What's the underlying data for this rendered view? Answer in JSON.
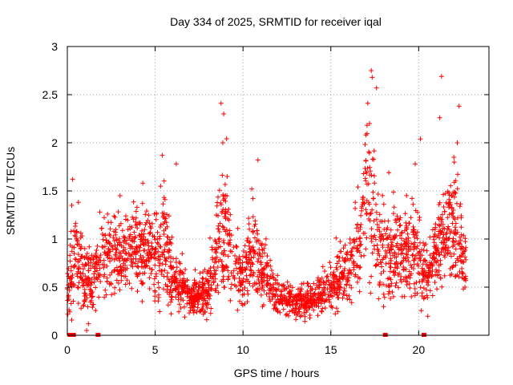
{
  "chart_data": {
    "type": "scatter",
    "title": "Day 334 of 2025, SRMTID for receiver iqal",
    "xlabel": "GPS time / hours",
    "ylabel": "SRMTID / TECUs",
    "xlim": [
      0,
      24
    ],
    "ylim": [
      0,
      3
    ],
    "xticks": [
      0,
      5,
      10,
      15,
      20
    ],
    "yticks": [
      0,
      0.5,
      1,
      1.5,
      2,
      2.5,
      3
    ],
    "xtick_labels": [
      "0",
      "5",
      "10",
      "15",
      "20"
    ],
    "ytick_labels": [
      "0",
      "0.5",
      "1",
      "1.5",
      "2",
      "2.5",
      "3"
    ],
    "grid": true,
    "marker": "+",
    "series": [
      {
        "name": "SRMTID",
        "color": "#ff0000",
        "seed": 334,
        "envelope": [
          {
            "x": 0.0,
            "mean": 0.5,
            "spread": 0.25
          },
          {
            "x": 0.5,
            "mean": 0.8,
            "spread": 0.5
          },
          {
            "x": 1.0,
            "mean": 0.6,
            "spread": 0.35
          },
          {
            "x": 1.5,
            "mean": 0.55,
            "spread": 0.3
          },
          {
            "x": 2.0,
            "mean": 0.85,
            "spread": 0.35
          },
          {
            "x": 3.0,
            "mean": 0.8,
            "spread": 0.4
          },
          {
            "x": 4.0,
            "mean": 0.9,
            "spread": 0.35
          },
          {
            "x": 5.0,
            "mean": 0.8,
            "spread": 0.4
          },
          {
            "x": 5.5,
            "mean": 1.0,
            "spread": 0.5
          },
          {
            "x": 6.0,
            "mean": 0.6,
            "spread": 0.3
          },
          {
            "x": 7.0,
            "mean": 0.4,
            "spread": 0.15
          },
          {
            "x": 8.0,
            "mean": 0.45,
            "spread": 0.2
          },
          {
            "x": 8.5,
            "mean": 0.9,
            "spread": 0.5
          },
          {
            "x": 9.0,
            "mean": 1.2,
            "spread": 0.7
          },
          {
            "x": 9.5,
            "mean": 0.7,
            "spread": 0.35
          },
          {
            "x": 10.0,
            "mean": 0.6,
            "spread": 0.3
          },
          {
            "x": 10.5,
            "mean": 0.85,
            "spread": 0.45
          },
          {
            "x": 11.0,
            "mean": 0.7,
            "spread": 0.3
          },
          {
            "x": 12.0,
            "mean": 0.4,
            "spread": 0.15
          },
          {
            "x": 13.0,
            "mean": 0.35,
            "spread": 0.15
          },
          {
            "x": 14.0,
            "mean": 0.38,
            "spread": 0.15
          },
          {
            "x": 15.0,
            "mean": 0.5,
            "spread": 0.2
          },
          {
            "x": 16.0,
            "mean": 0.65,
            "spread": 0.3
          },
          {
            "x": 16.5,
            "mean": 0.9,
            "spread": 0.35
          },
          {
            "x": 17.0,
            "mean": 1.5,
            "spread": 0.8
          },
          {
            "x": 17.5,
            "mean": 1.2,
            "spread": 0.6
          },
          {
            "x": 18.0,
            "mean": 0.8,
            "spread": 0.45
          },
          {
            "x": 19.0,
            "mean": 0.9,
            "spread": 0.4
          },
          {
            "x": 20.0,
            "mean": 0.85,
            "spread": 0.45
          },
          {
            "x": 20.5,
            "mean": 0.6,
            "spread": 0.3
          },
          {
            "x": 21.0,
            "mean": 0.9,
            "spread": 0.35
          },
          {
            "x": 21.5,
            "mean": 1.1,
            "spread": 0.5
          },
          {
            "x": 22.0,
            "mean": 1.2,
            "spread": 0.6
          },
          {
            "x": 22.5,
            "mean": 0.8,
            "spread": 0.4
          }
        ],
        "x_range": [
          0.0,
          22.7
        ],
        "n_points": 2400,
        "highlights": [
          [
            0.3,
            1.62
          ],
          [
            0.25,
            1.35
          ],
          [
            1.85,
            1.28
          ],
          [
            3.0,
            1.45
          ],
          [
            4.3,
            1.58
          ],
          [
            5.4,
            1.87
          ],
          [
            6.2,
            1.78
          ],
          [
            8.75,
            2.41
          ],
          [
            8.9,
            2.3
          ],
          [
            8.85,
            2.0
          ],
          [
            9.1,
            1.65
          ],
          [
            10.85,
            1.82
          ],
          [
            10.5,
            1.52
          ],
          [
            15.3,
            1.01
          ],
          [
            17.1,
            2.41
          ],
          [
            17.3,
            2.75
          ],
          [
            17.35,
            2.68
          ],
          [
            17.2,
            2.2
          ],
          [
            17.6,
            2.57
          ],
          [
            18.3,
            1.69
          ],
          [
            19.8,
            1.78
          ],
          [
            20.1,
            2.04
          ],
          [
            21.3,
            2.69
          ],
          [
            21.2,
            2.26
          ],
          [
            22.3,
            2.38
          ],
          [
            22.2,
            2.0
          ],
          [
            22.0,
            1.85
          ],
          [
            1.1,
            0.05
          ],
          [
            1.2,
            0.12
          ],
          [
            12.5,
            0.22
          ],
          [
            13.8,
            0.18
          ]
        ],
        "baseline_points": [
          [
            0.15,
            0.0
          ],
          [
            0.35,
            0.0
          ],
          [
            1.75,
            0.0
          ],
          [
            18.1,
            0.0
          ],
          [
            20.3,
            0.0
          ]
        ]
      }
    ]
  }
}
